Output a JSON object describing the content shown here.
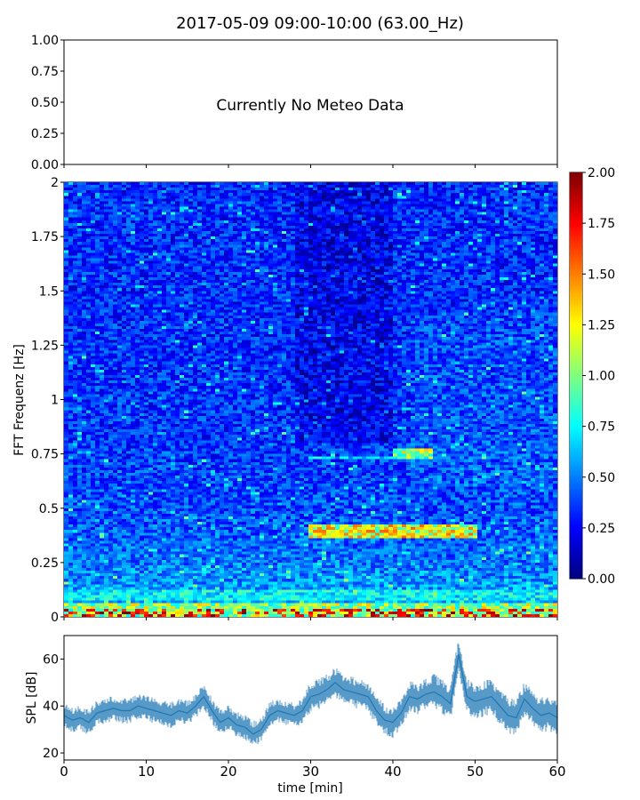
{
  "chart_data": [
    {
      "type": "line",
      "title": "2017-05-09 09:00-10:00 (63.00_Hz)",
      "annotation": "Currently No Meteo Data",
      "ylim": [
        0,
        1
      ],
      "yticks": [
        "0.00",
        "0.25",
        "0.50",
        "0.75",
        "1.00"
      ],
      "yticks_values": [
        0,
        0.25,
        0.5,
        0.75,
        1.0
      ],
      "xlim": [
        0,
        60
      ],
      "series": []
    },
    {
      "type": "heatmap",
      "ylabel": "FFT Frequenz [Hz]",
      "xlim": [
        0,
        60
      ],
      "ylim": [
        0,
        2
      ],
      "yticks": [
        "0",
        "0.25",
        "0.5",
        "0.75",
        "1",
        "1.25",
        "1.5",
        "1.75",
        "2"
      ],
      "yticks_values": [
        0,
        0.25,
        0.5,
        0.75,
        1,
        1.25,
        1.5,
        1.75,
        2
      ],
      "colormap": "jet",
      "color_range": [
        0,
        2
      ],
      "colorbar_ticks": [
        "0.00",
        "0.25",
        "0.50",
        "0.75",
        "1.00",
        "1.25",
        "1.50",
        "1.75",
        "2.00"
      ],
      "colorbar_values": [
        0,
        0.25,
        0.5,
        0.75,
        1,
        1.25,
        1.5,
        1.75,
        2
      ],
      "features": [
        {
          "x": [
            0,
            60
          ],
          "y": [
            0,
            0.06
          ],
          "value": 1.3
        },
        {
          "x": [
            0,
            60
          ],
          "y": [
            0.08,
            0.12
          ],
          "value": 0.9
        },
        {
          "x": [
            30,
            50
          ],
          "y": [
            0.36,
            0.42
          ],
          "value": 1.5
        },
        {
          "x": [
            40,
            45
          ],
          "y": [
            0.72,
            0.78
          ],
          "value": 1.3
        },
        {
          "x": [
            30,
            40
          ],
          "y": [
            0.72,
            0.74
          ],
          "value": 0.8
        }
      ]
    },
    {
      "type": "line",
      "xlabel": "time [min]",
      "ylabel": "SPL [dB]",
      "xlim": [
        0,
        60
      ],
      "ylim": [
        17,
        70
      ],
      "xticks": [
        "0",
        "10",
        "20",
        "30",
        "40",
        "50",
        "60"
      ],
      "xticks_values": [
        0,
        10,
        20,
        30,
        40,
        50,
        60
      ],
      "yticks": [
        "20",
        "40",
        "60"
      ],
      "yticks_values": [
        20,
        40,
        60
      ],
      "series": [
        {
          "color": "#1f77b4",
          "x": [
            0,
            1,
            2,
            3,
            4,
            5,
            6,
            7,
            8,
            9,
            10,
            11,
            12,
            13,
            14,
            15,
            16,
            17,
            18,
            19,
            20,
            21,
            22,
            23,
            24,
            25,
            26,
            27,
            28,
            29,
            30,
            31,
            32,
            33,
            34,
            35,
            36,
            37,
            38,
            39,
            40,
            41,
            42,
            43,
            44,
            45,
            46,
            47,
            48,
            49,
            50,
            51,
            52,
            53,
            54,
            55,
            56,
            57,
            58,
            59,
            60
          ],
          "values": [
            36,
            34,
            35,
            33,
            37,
            38,
            39,
            38,
            38,
            40,
            39,
            38,
            37,
            36,
            38,
            37,
            40,
            44,
            38,
            33,
            35,
            32,
            31,
            28,
            30,
            36,
            38,
            37,
            36,
            38,
            44,
            45,
            47,
            50,
            47,
            46,
            45,
            44,
            38,
            34,
            33,
            37,
            44,
            43,
            45,
            46,
            44,
            41,
            62,
            44,
            42,
            43,
            44,
            40,
            36,
            35,
            43,
            39,
            36,
            37,
            35
          ],
          "band": [
            5,
            5,
            5,
            5,
            5,
            5,
            5,
            5,
            5,
            5,
            5,
            5,
            5,
            5,
            5,
            5,
            5,
            5,
            5,
            5,
            5,
            5,
            5,
            5,
            5,
            5,
            5,
            5,
            5,
            5,
            6,
            6,
            6,
            6,
            6,
            6,
            6,
            6,
            6,
            6,
            6,
            6,
            6,
            6,
            6,
            7,
            7,
            7,
            7,
            7,
            7,
            7,
            7,
            7,
            7,
            7,
            7,
            7,
            7,
            7,
            7
          ]
        }
      ]
    }
  ]
}
